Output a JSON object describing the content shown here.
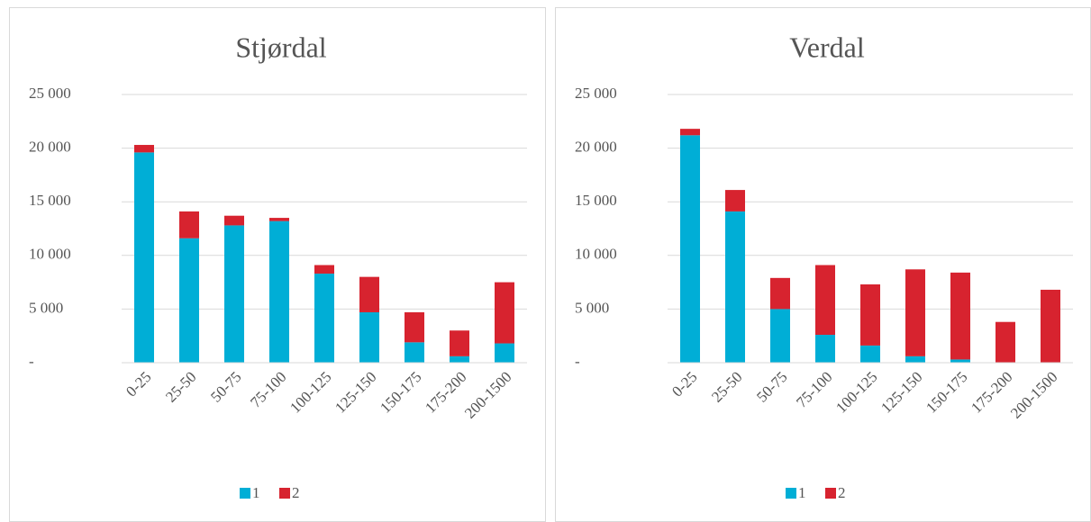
{
  "chart_data": [
    {
      "type": "stacked_bar",
      "title": "Stjørdal",
      "categories": [
        "0-25",
        "25-50",
        "50-75",
        "75-100",
        "100-125",
        "125-150",
        "150-175",
        "175-200",
        "200-1500"
      ],
      "series": [
        {
          "name": "1",
          "color": "#00aed6",
          "values": [
            19600,
            11600,
            12800,
            13200,
            8300,
            4700,
            1900,
            600,
            1800
          ]
        },
        {
          "name": "2",
          "color": "#d7232f",
          "values": [
            700,
            2500,
            900,
            300,
            800,
            3300,
            2800,
            2400,
            5700
          ]
        }
      ],
      "ylim": [
        0,
        25000
      ],
      "yticks": [
        {
          "value": 0,
          "label": "-"
        },
        {
          "value": 5000,
          "label": "5 000"
        },
        {
          "value": 10000,
          "label": "10 000"
        },
        {
          "value": 15000,
          "label": "15 000"
        },
        {
          "value": 20000,
          "label": "20 000"
        },
        {
          "value": 25000,
          "label": "25 000"
        }
      ],
      "grid": true,
      "legend": "bottom"
    },
    {
      "type": "stacked_bar",
      "title": "Verdal",
      "categories": [
        "0-25",
        "25-50",
        "50-75",
        "75-100",
        "100-125",
        "125-150",
        "150-175",
        "175-200",
        "200-1500"
      ],
      "series": [
        {
          "name": "1",
          "color": "#00aed6",
          "values": [
            21200,
            14100,
            5000,
            2600,
            1600,
            600,
            300,
            0,
            0
          ]
        },
        {
          "name": "2",
          "color": "#d7232f",
          "values": [
            600,
            2000,
            2900,
            6500,
            5700,
            8100,
            8100,
            3800,
            6800
          ]
        }
      ],
      "ylim": [
        0,
        25000
      ],
      "yticks": [
        {
          "value": 0,
          "label": "-"
        },
        {
          "value": 5000,
          "label": "5 000"
        },
        {
          "value": 10000,
          "label": "10 000"
        },
        {
          "value": 15000,
          "label": "15 000"
        },
        {
          "value": 20000,
          "label": "20 000"
        },
        {
          "value": 25000,
          "label": "25 000"
        }
      ],
      "grid": true,
      "legend": "bottom"
    }
  ]
}
